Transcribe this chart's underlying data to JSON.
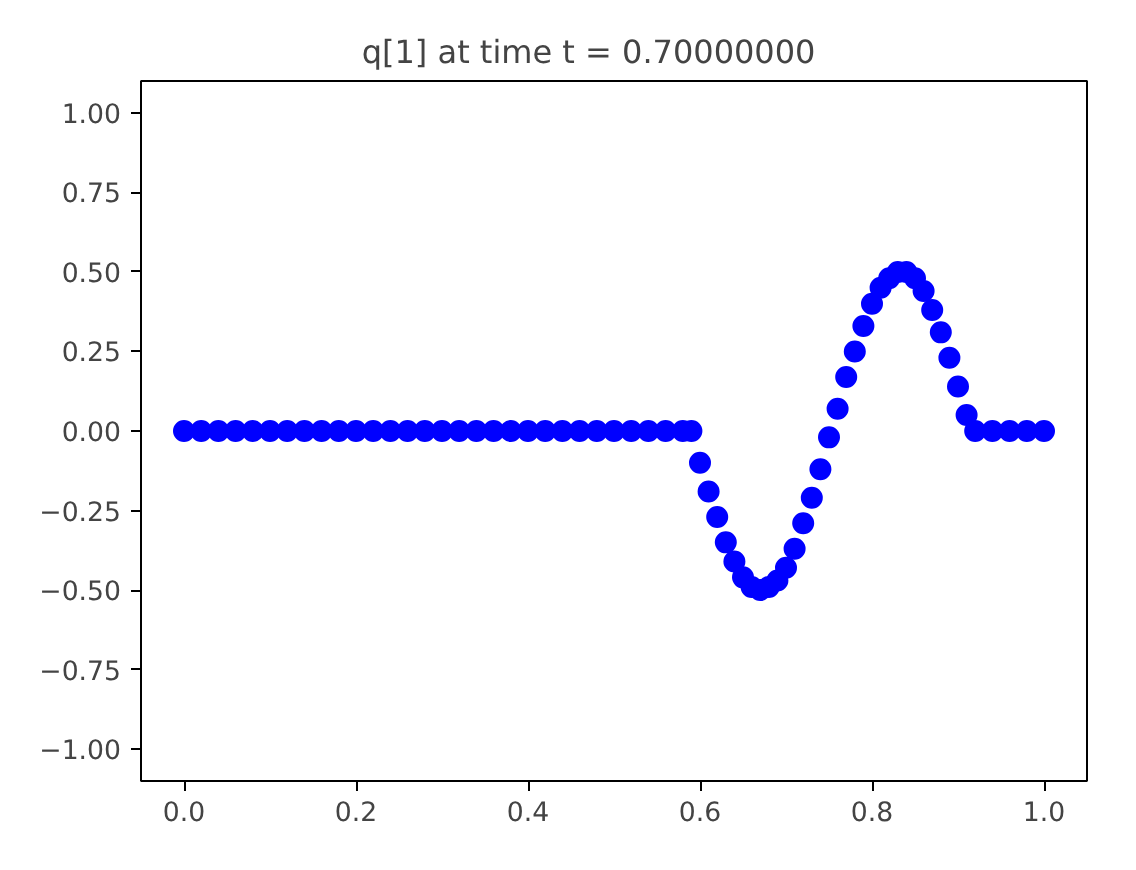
{
  "chart_data": {
    "type": "scatter",
    "title": "q[1] at time t =      0.70000000",
    "x": [
      0,
      0.02,
      0.04,
      0.06,
      0.08,
      0.1,
      0.12,
      0.14,
      0.16,
      0.18,
      0.2,
      0.22,
      0.24,
      0.26,
      0.28,
      0.3,
      0.32,
      0.34,
      0.36,
      0.38,
      0.4,
      0.42,
      0.44,
      0.46,
      0.48,
      0.5,
      0.52,
      0.54,
      0.56,
      0.58,
      0.59,
      0.6,
      0.61,
      0.62,
      0.63,
      0.64,
      0.65,
      0.66,
      0.67,
      0.68,
      0.69,
      0.7,
      0.71,
      0.72,
      0.73,
      0.74,
      0.75,
      0.76,
      0.77,
      0.78,
      0.79,
      0.8,
      0.81,
      0.82,
      0.83,
      0.84,
      0.85,
      0.86,
      0.87,
      0.88,
      0.89,
      0.9,
      0.91,
      0.92,
      0.94,
      0.96,
      0.98,
      1.0
    ],
    "series": [
      {
        "color": "#0000ff",
        "values": [
          0,
          0,
          0,
          0,
          0,
          0,
          0,
          0,
          0,
          0,
          0,
          0,
          0,
          0,
          0,
          0,
          0,
          0,
          0,
          0,
          0,
          0,
          0,
          0,
          0,
          0,
          0,
          0,
          0,
          0,
          0,
          -0.1,
          -0.19,
          -0.27,
          -0.35,
          -0.41,
          -0.46,
          -0.49,
          -0.5,
          -0.49,
          -0.47,
          -0.43,
          -0.37,
          -0.29,
          -0.21,
          -0.12,
          -0.02,
          0.07,
          0.17,
          0.25,
          0.33,
          0.4,
          0.45,
          0.48,
          0.5,
          0.5,
          0.48,
          0.44,
          0.38,
          0.31,
          0.23,
          0.14,
          0.05,
          0,
          0,
          0,
          0,
          0
        ]
      }
    ],
    "marker": "circle",
    "xlim": [
      -0.05,
      1.05
    ],
    "ylim": [
      -1.1,
      1.1
    ],
    "xticks": [
      {
        "value": 0,
        "label": "0.0"
      },
      {
        "value": 0.2,
        "label": "0.2"
      },
      {
        "value": 0.4,
        "label": "0.4"
      },
      {
        "value": 0.6,
        "label": "0.6"
      },
      {
        "value": 0.8,
        "label": "0.8"
      },
      {
        "value": 1,
        "label": "1.0"
      }
    ],
    "yticks": [
      {
        "value": -1,
        "label": "−1.00"
      },
      {
        "value": -0.75,
        "label": "−0.75"
      },
      {
        "value": -0.5,
        "label": "−0.50"
      },
      {
        "value": -0.25,
        "label": "−0.25"
      },
      {
        "value": 0,
        "label": "0.00"
      },
      {
        "value": 0.25,
        "label": "0.25"
      },
      {
        "value": 0.5,
        "label": "0.50"
      },
      {
        "value": 0.75,
        "label": "0.75"
      },
      {
        "value": 1,
        "label": "1.00"
      }
    ],
    "grid": false
  }
}
